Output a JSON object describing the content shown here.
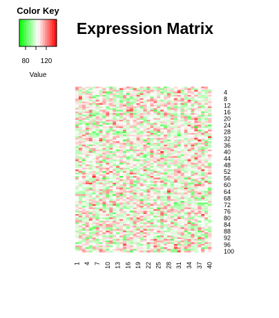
{
  "chart_data": {
    "type": "heatmap",
    "title": "Expression Matrix",
    "color_key": {
      "title": "Color Key",
      "xlabel": "Value",
      "ticks": [
        80,
        120
      ],
      "range": [
        68,
        140
      ],
      "colors": [
        "#00ff00",
        "#ffffff",
        "#ff0000"
      ]
    },
    "x_labels": [
      "1",
      "4",
      "7",
      "10",
      "13",
      "16",
      "19",
      "22",
      "25",
      "28",
      "31",
      "34",
      "37",
      "40"
    ],
    "y_labels": [
      "4",
      "8",
      "12",
      "16",
      "20",
      "24",
      "28",
      "32",
      "36",
      "40",
      "44",
      "48",
      "52",
      "56",
      "60",
      "64",
      "68",
      "72",
      "76",
      "80",
      "84",
      "88",
      "92",
      "96",
      "100"
    ],
    "n_cols": 40,
    "n_rows": 100,
    "value_range": [
      68,
      140
    ]
  }
}
